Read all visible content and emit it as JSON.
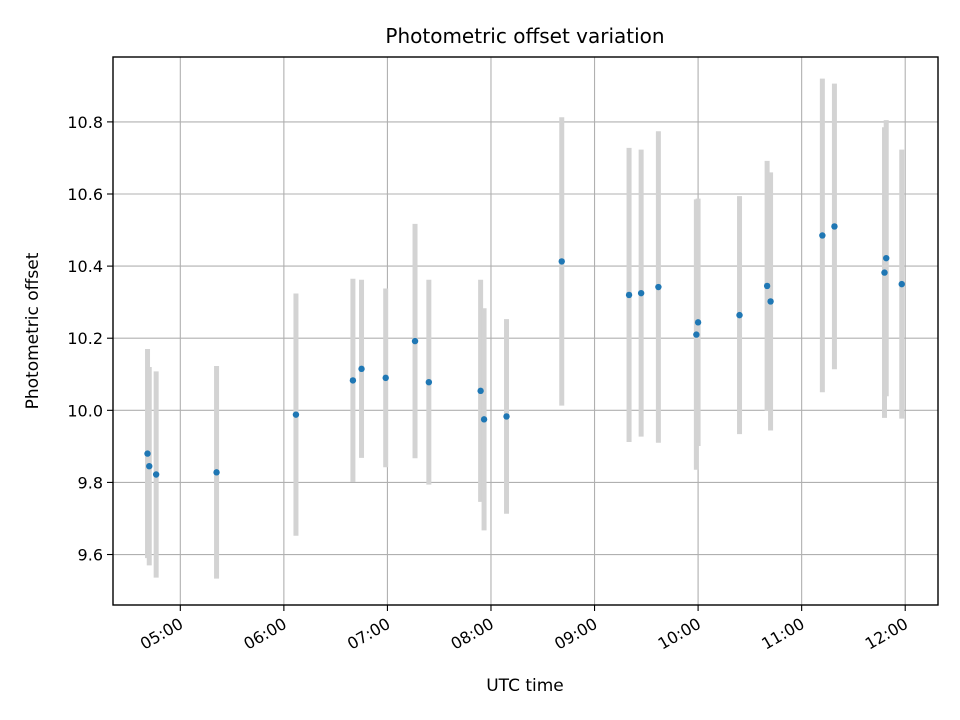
{
  "chart_data": {
    "type": "scatter",
    "title": "Photometric offset variation",
    "xlabel": "UTC time",
    "ylabel": "Photometric offset",
    "x_tick_labels": [
      "05:00",
      "06:00",
      "07:00",
      "08:00",
      "09:00",
      "10:00",
      "11:00",
      "12:00"
    ],
    "y_tick_labels": [
      "9.6",
      "9.8",
      "10.0",
      "10.2",
      "10.4",
      "10.6",
      "10.8"
    ],
    "y_ticks": [
      9.6,
      9.8,
      10.0,
      10.2,
      10.4,
      10.6,
      10.8
    ],
    "xlim": [
      "04:21",
      "12:19"
    ],
    "ylim": [
      9.46,
      10.98
    ],
    "grid": true,
    "point_color": "#1f77b4",
    "errorbar_color": "#d3d3d3",
    "points": [
      {
        "x": "04:41",
        "y": 9.88,
        "err": 0.29
      },
      {
        "x": "04:42",
        "y": 9.845,
        "err": 0.275
      },
      {
        "x": "04:46",
        "y": 9.822,
        "err": 0.286
      },
      {
        "x": "05:21",
        "y": 9.828,
        "err": 0.295
      },
      {
        "x": "06:07",
        "y": 9.988,
        "err": 0.336
      },
      {
        "x": "06:40",
        "y": 10.083,
        "err": 0.282
      },
      {
        "x": "06:45",
        "y": 10.115,
        "err": 0.247
      },
      {
        "x": "06:59",
        "y": 10.09,
        "err": 0.248
      },
      {
        "x": "07:16",
        "y": 10.192,
        "err": 0.325
      },
      {
        "x": "07:24",
        "y": 10.078,
        "err": 0.284
      },
      {
        "x": "07:54",
        "y": 10.054,
        "err": 0.308
      },
      {
        "x": "07:56",
        "y": 9.975,
        "err": 0.308
      },
      {
        "x": "08:09",
        "y": 9.983,
        "err": 0.27
      },
      {
        "x": "08:41",
        "y": 10.413,
        "err": 0.4
      },
      {
        "x": "09:20",
        "y": 10.32,
        "err": 0.408
      },
      {
        "x": "09:27",
        "y": 10.325,
        "err": 0.398
      },
      {
        "x": "09:37",
        "y": 10.342,
        "err": 0.432
      },
      {
        "x": "09:59",
        "y": 10.21,
        "err": 0.375
      },
      {
        "x": "10:00",
        "y": 10.244,
        "err": 0.343
      },
      {
        "x": "10:24",
        "y": 10.264,
        "err": 0.33
      },
      {
        "x": "10:40",
        "y": 10.345,
        "err": 0.347
      },
      {
        "x": "10:42",
        "y": 10.302,
        "err": 0.358
      },
      {
        "x": "11:12",
        "y": 10.485,
        "err": 0.435
      },
      {
        "x": "11:19",
        "y": 10.51,
        "err": 0.396
      },
      {
        "x": "11:48",
        "y": 10.382,
        "err": 0.403
      },
      {
        "x": "11:49",
        "y": 10.422,
        "err": 0.383
      },
      {
        "x": "11:58",
        "y": 10.35,
        "err": 0.373
      }
    ]
  }
}
